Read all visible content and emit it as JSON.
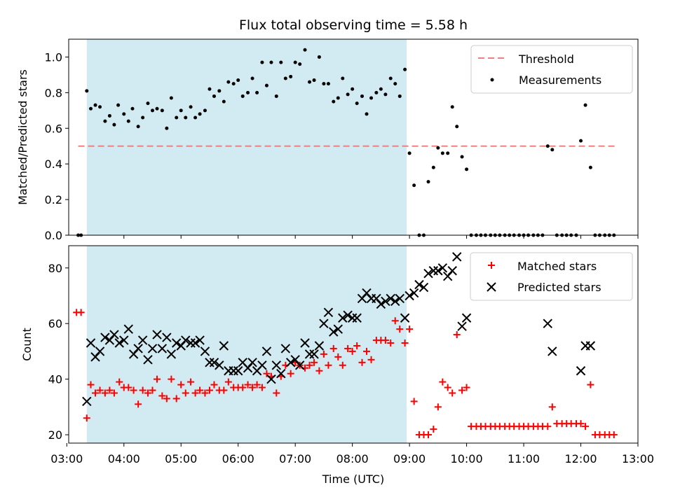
{
  "chart_data": [
    {
      "type": "scatter",
      "title": "Flux total observing time = 5.58 h",
      "xlabel": "",
      "ylabel": "Matched/Predicted stars",
      "xlim": [
        3.0333,
        13.0
      ],
      "ylim": [
        0,
        1.1
      ],
      "x_unit": "hours UTC",
      "yticks": [
        0.0,
        0.2,
        0.4,
        0.6,
        0.8,
        1.0
      ],
      "ytick_labels": [
        "0.0",
        "0.2",
        "0.4",
        "0.6",
        "0.8",
        "1.0"
      ],
      "shaded_interval": [
        3.35,
        8.95
      ],
      "shade_color": "#add8e6",
      "threshold": {
        "name": "Threshold",
        "y": 0.5,
        "x_range": [
          3.2,
          12.6
        ],
        "color": "#f08080"
      },
      "series": [
        {
          "name": "Measurements",
          "color": "#000000",
          "x": [
            3.2,
            3.25,
            3.35,
            3.42,
            3.5,
            3.58,
            3.67,
            3.75,
            3.83,
            3.9,
            4.0,
            4.08,
            4.15,
            4.25,
            4.33,
            4.42,
            4.5,
            4.58,
            4.67,
            4.75,
            4.83,
            4.92,
            5.0,
            5.08,
            5.17,
            5.25,
            5.33,
            5.42,
            5.5,
            5.58,
            5.67,
            5.75,
            5.83,
            5.92,
            6.0,
            6.08,
            6.17,
            6.25,
            6.33,
            6.42,
            6.5,
            6.58,
            6.67,
            6.75,
            6.83,
            6.92,
            7.0,
            7.08,
            7.17,
            7.25,
            7.33,
            7.42,
            7.5,
            7.58,
            7.67,
            7.75,
            7.83,
            7.92,
            8.0,
            8.08,
            8.17,
            8.25,
            8.33,
            8.42,
            8.5,
            8.58,
            8.67,
            8.75,
            8.83,
            8.92,
            9.0,
            9.08,
            9.17,
            9.25,
            9.33,
            9.42,
            9.5,
            9.58,
            9.67,
            9.75,
            9.83,
            9.92,
            10.0,
            10.08,
            10.17,
            10.25,
            10.33,
            10.42,
            10.5,
            10.58,
            10.67,
            10.75,
            10.83,
            10.92,
            11.0,
            11.08,
            11.17,
            11.25,
            11.33,
            11.42,
            11.5,
            11.58,
            11.67,
            11.75,
            11.83,
            11.92,
            12.0,
            12.08,
            12.17,
            12.25,
            12.33,
            12.42,
            12.5,
            12.58
          ],
          "y": [
            0.0,
            0.0,
            0.81,
            0.71,
            0.73,
            0.72,
            0.64,
            0.67,
            0.62,
            0.73,
            0.68,
            0.64,
            0.71,
            0.61,
            0.66,
            0.74,
            0.7,
            0.71,
            0.7,
            0.6,
            0.77,
            0.66,
            0.7,
            0.66,
            0.72,
            0.66,
            0.68,
            0.7,
            0.82,
            0.78,
            0.81,
            0.75,
            0.86,
            0.85,
            0.87,
            0.78,
            0.8,
            0.88,
            0.8,
            0.97,
            0.84,
            0.97,
            0.78,
            0.97,
            0.88,
            0.89,
            0.97,
            0.96,
            1.04,
            0.86,
            0.87,
            1.0,
            0.85,
            0.85,
            0.75,
            0.77,
            0.88,
            0.79,
            0.82,
            0.74,
            0.78,
            0.68,
            0.77,
            0.8,
            0.82,
            0.79,
            0.88,
            0.85,
            0.78,
            0.93,
            0.46,
            0.28,
            0.0,
            0.0,
            0.3,
            0.38,
            0.49,
            0.46,
            0.46,
            0.72,
            0.61,
            0.44,
            0.37,
            0.0,
            0.0,
            0.0,
            0.0,
            0.0,
            0.0,
            0.0,
            0.0,
            0.0,
            0.0,
            0.0,
            0.0,
            0.0,
            0.0,
            0.0,
            0.0,
            0.5,
            0.48,
            0.0,
            0.0,
            0.0,
            0.0,
            0.0,
            0.53,
            0.73,
            0.38,
            0.0,
            0.0,
            0.0,
            0.0,
            0.0
          ]
        }
      ],
      "legend": [
        "Threshold",
        "Measurements"
      ],
      "legend_position": "top-right"
    },
    {
      "type": "scatter",
      "title": "",
      "xlabel": "Time (UTC)",
      "ylabel": "Count",
      "xlim": [
        3.0333,
        13.0
      ],
      "ylim": [
        17,
        88
      ],
      "xticks": [
        3,
        4,
        5,
        6,
        7,
        8,
        9,
        10,
        11,
        12,
        13
      ],
      "xtick_labels": [
        "03:00",
        "04:00",
        "05:00",
        "06:00",
        "07:00",
        "08:00",
        "09:00",
        "10:00",
        "11:00",
        "12:00",
        "13:00"
      ],
      "yticks": [
        20,
        40,
        60,
        80
      ],
      "ytick_labels": [
        "20",
        "40",
        "60",
        "80"
      ],
      "shaded_interval": [
        3.35,
        8.95
      ],
      "shade_color": "#add8e6",
      "series": [
        {
          "name": "Matched stars",
          "marker": "plus",
          "color": "#ff0000",
          "x": [
            3.17,
            3.25,
            3.35,
            3.42,
            3.5,
            3.58,
            3.67,
            3.75,
            3.83,
            3.92,
            4.0,
            4.08,
            4.17,
            4.25,
            4.33,
            4.42,
            4.5,
            4.58,
            4.67,
            4.75,
            4.83,
            4.92,
            5.0,
            5.08,
            5.17,
            5.25,
            5.33,
            5.42,
            5.5,
            5.58,
            5.67,
            5.75,
            5.83,
            5.92,
            6.0,
            6.08,
            6.17,
            6.25,
            6.33,
            6.42,
            6.5,
            6.58,
            6.67,
            6.75,
            6.83,
            6.92,
            7.0,
            7.08,
            7.17,
            7.25,
            7.33,
            7.42,
            7.5,
            7.58,
            7.67,
            7.75,
            7.83,
            7.92,
            8.0,
            8.08,
            8.17,
            8.25,
            8.33,
            8.42,
            8.5,
            8.58,
            8.67,
            8.75,
            8.83,
            8.92,
            9.0,
            9.08,
            9.17,
            9.25,
            9.33,
            9.42,
            9.5,
            9.58,
            9.67,
            9.75,
            9.83,
            9.92,
            10.0,
            10.08,
            10.17,
            10.25,
            10.33,
            10.42,
            10.5,
            10.58,
            10.67,
            10.75,
            10.83,
            10.92,
            11.0,
            11.08,
            11.17,
            11.25,
            11.33,
            11.42,
            11.5,
            11.58,
            11.67,
            11.75,
            11.83,
            11.92,
            12.0,
            12.08,
            12.17,
            12.25,
            12.33,
            12.42,
            12.5,
            12.58
          ],
          "y": [
            64,
            64,
            26,
            38,
            35,
            36,
            35,
            36,
            35,
            39,
            37,
            37,
            36,
            31,
            36,
            35,
            36,
            40,
            34,
            33,
            40,
            33,
            38,
            35,
            39,
            35,
            36,
            35,
            36,
            38,
            36,
            36,
            39,
            37,
            37,
            37,
            38,
            37,
            38,
            37,
            42,
            41,
            35,
            41,
            45,
            42,
            46,
            45,
            44,
            45,
            46,
            43,
            49,
            45,
            51,
            48,
            45,
            51,
            50,
            52,
            46,
            50,
            47,
            54,
            54,
            54,
            53,
            61,
            58,
            53,
            58,
            32,
            20,
            20,
            20,
            22,
            30,
            39,
            37,
            35,
            56,
            36,
            37,
            23,
            23,
            23,
            23,
            23,
            23,
            23,
            23,
            23,
            23,
            23,
            23,
            23,
            23,
            23,
            23,
            23,
            30,
            24,
            24,
            24,
            24,
            24,
            24,
            23,
            38,
            20,
            20,
            20,
            20,
            20
          ]
        },
        {
          "name": "Predicted stars",
          "marker": "x",
          "color": "#000000",
          "x": [
            3.35,
            3.42,
            3.5,
            3.58,
            3.67,
            3.75,
            3.83,
            3.92,
            4.0,
            4.08,
            4.17,
            4.25,
            4.33,
            4.42,
            4.5,
            4.58,
            4.67,
            4.75,
            4.83,
            4.92,
            5.0,
            5.08,
            5.17,
            5.25,
            5.33,
            5.42,
            5.5,
            5.58,
            5.67,
            5.75,
            5.83,
            5.92,
            6.0,
            6.08,
            6.17,
            6.25,
            6.33,
            6.42,
            6.5,
            6.58,
            6.67,
            6.75,
            6.83,
            6.92,
            7.0,
            7.08,
            7.17,
            7.25,
            7.33,
            7.42,
            7.5,
            7.58,
            7.67,
            7.75,
            7.83,
            7.92,
            8.0,
            8.08,
            8.17,
            8.25,
            8.33,
            8.42,
            8.5,
            8.58,
            8.67,
            8.75,
            8.83,
            8.92,
            9.0,
            9.08,
            9.17,
            9.25,
            9.33,
            9.42,
            9.5,
            9.58,
            9.67,
            9.75,
            9.83,
            9.92,
            10.0,
            11.42,
            11.5,
            12.0,
            12.08,
            12.17
          ],
          "y": [
            32,
            53,
            48,
            50,
            55,
            54,
            56,
            53,
            54,
            58,
            49,
            51,
            54,
            47,
            51,
            56,
            51,
            55,
            49,
            53,
            52,
            54,
            53,
            53,
            54,
            50,
            46,
            46,
            45,
            52,
            43,
            43,
            43,
            46,
            44,
            46,
            43,
            45,
            50,
            40,
            45,
            42,
            51,
            46,
            47,
            45,
            53,
            49,
            49,
            52,
            60,
            64,
            57,
            58,
            62,
            63,
            62,
            62,
            69,
            71,
            69,
            69,
            67,
            68,
            69,
            68,
            69,
            62,
            70,
            71,
            74,
            73,
            78,
            79,
            79,
            80,
            77,
            79,
            84,
            59,
            62,
            60,
            50,
            43,
            52,
            52
          ]
        }
      ],
      "legend": [
        "Matched stars",
        "Predicted stars"
      ],
      "legend_position": "top-right"
    }
  ]
}
